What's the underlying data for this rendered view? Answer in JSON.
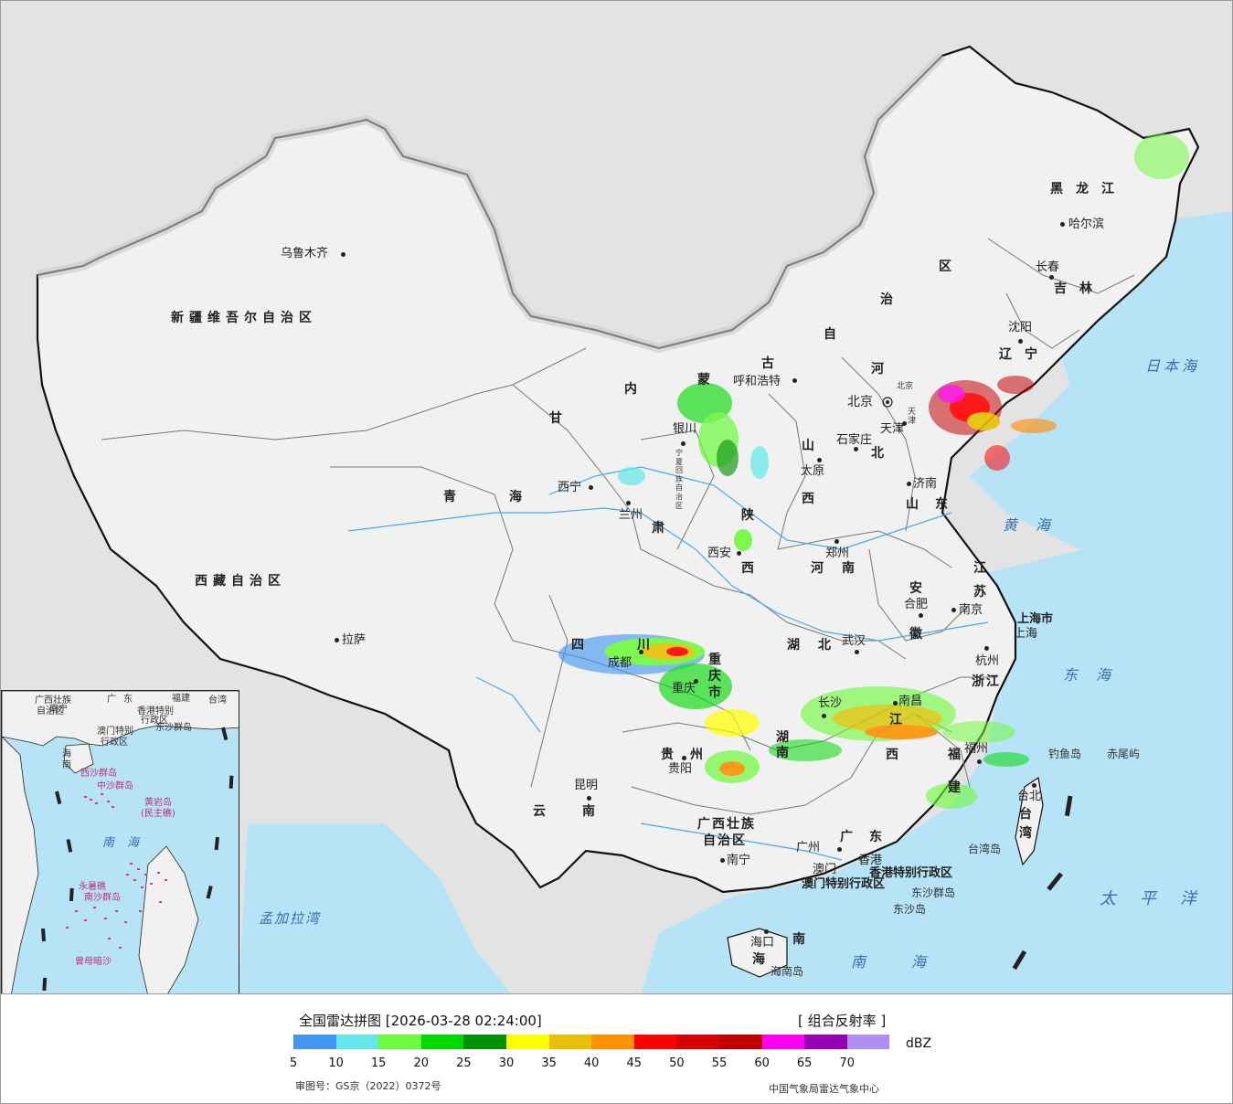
{
  "legend": {
    "title": "全国雷达拼图 [2026-03-28 02:24:00]",
    "product": "[ 组合反射率 ]",
    "unit": "dBZ",
    "review_number": "审图号：GS京（2022）0372号",
    "credit": "中国气象局雷达气象中心",
    "colors": [
      "#4196ef",
      "#64e7eb",
      "#6efa3d",
      "#00d800",
      "#019001",
      "#ffff00",
      "#e7c000",
      "#ff9000",
      "#ff0000",
      "#d60000",
      "#c00000",
      "#ff00f0",
      "#9600b4",
      "#ad90f0"
    ],
    "ticks": [
      "5",
      "10",
      "15",
      "20",
      "25",
      "30",
      "35",
      "40",
      "45",
      "50",
      "55",
      "60",
      "65",
      "70"
    ]
  },
  "map": {
    "provinces": {
      "xinjiang": "新疆维吾尔自治区",
      "xizang": "西藏自治区",
      "qinghai_1": "青",
      "qinghai_2": "海",
      "gansu_1": "甘",
      "gansu_2": "肃",
      "neimeng_1": "内",
      "neimeng_2": "蒙",
      "neimeng_3": "古",
      "neimeng_4": "自",
      "neimeng_5": "治",
      "neimeng_6": "区",
      "heilongjiang": "黑龙江",
      "jilin": "吉林",
      "liaoning": "辽宁",
      "hebei_1": "河",
      "hebei_2": "北",
      "shanxi_1": "山",
      "shanxi_2": "西",
      "shaanxi_1": "陕",
      "shaanxi_2": "西",
      "shandong": "山东",
      "henan": "河南",
      "jiangsu_1": "江",
      "jiangsu_2": "苏",
      "anhui_1": "安",
      "anhui_2": "徽",
      "hubei": "湖北",
      "sichuan_1": "四",
      "sichuan_2": "川",
      "chongqing": "重庆市",
      "guizhou": "贵州",
      "yunnan": "云南",
      "hunan": "湖南",
      "jiangxi_1": "江",
      "jiangxi_2": "西",
      "zhejiang": "浙江",
      "fujian_1": "福",
      "fujian_2": "建",
      "guangxi_1": "广西壮族",
      "guangxi_2": "自治区",
      "guangdong": "广东",
      "hainan_1": "海",
      "hainan_2": "南",
      "taiwan": "台湾",
      "shanghai": "上海市",
      "beijing_label": "北京",
      "tianjin_label": "天津",
      "ningxia": "宁夏回族自治区",
      "hongkong": "香港特别行政区",
      "macao": "澳门特别行政区"
    },
    "cities": {
      "urumqi": "乌鲁木齐",
      "lhasa": "拉萨",
      "xining": "西宁",
      "lanzhou": "兰州",
      "yinchuan": "银川",
      "hohhot": "呼和浩特",
      "harbin": "哈尔滨",
      "changchun": "长春",
      "shenyang": "沈阳",
      "beijing": "北京",
      "tianjin": "天津",
      "shijiazhuang": "石家庄",
      "taiyuan": "太原",
      "jinan": "济南",
      "zhengzhou": "郑州",
      "xian": "西安",
      "hefei": "合肥",
      "nanjing": "南京",
      "shanghai": "上海",
      "hangzhou": "杭州",
      "wuhan": "武汉",
      "chengdu": "成都",
      "chongqing": "重庆",
      "changsha": "长沙",
      "nanchang": "南昌",
      "fuzhou": "福州",
      "guiyang": "贵阳",
      "kunming": "昆明",
      "nanning": "南宁",
      "guangzhou": "广州",
      "macao": "澳门",
      "hongkong": "香港",
      "haikou": "海口",
      "taibei": "台北"
    },
    "seas": {
      "japan_sea": "日本海",
      "yellow_sea": "黄海",
      "east_sea": "东海",
      "pacific": "太平洋",
      "south_sea": "南海",
      "bengal": "孟加拉湾"
    },
    "islands": {
      "diaoyu": "钓鱼岛",
      "chiwei": "赤尾屿",
      "taiwan_island": "台湾岛",
      "dongsha_islands": "东沙群岛",
      "dongsha_island": "东沙岛",
      "hainan_island": "海南岛"
    }
  },
  "inset": {
    "guangxi": "广西壮族",
    "guangxi_2": "自治区",
    "guangdong": "广东",
    "fujian": "福建",
    "taiwan": "台湾",
    "nanning": "南宁",
    "hongkong": "香港特别",
    "hongkong_2": "行政区",
    "macao": "澳门特别",
    "macao_2": "行政区",
    "dongsha": "东沙群岛",
    "hainan": "海南",
    "xisha": "西沙群岛",
    "zhongsha": "中沙群岛",
    "huangyan": "黄岩岛",
    "huangyan_2": "(民主礁)",
    "south_sea": "南海",
    "nansha": "南沙群岛",
    "yongshu": "永暑礁",
    "zengmu": "曾母暗沙"
  }
}
